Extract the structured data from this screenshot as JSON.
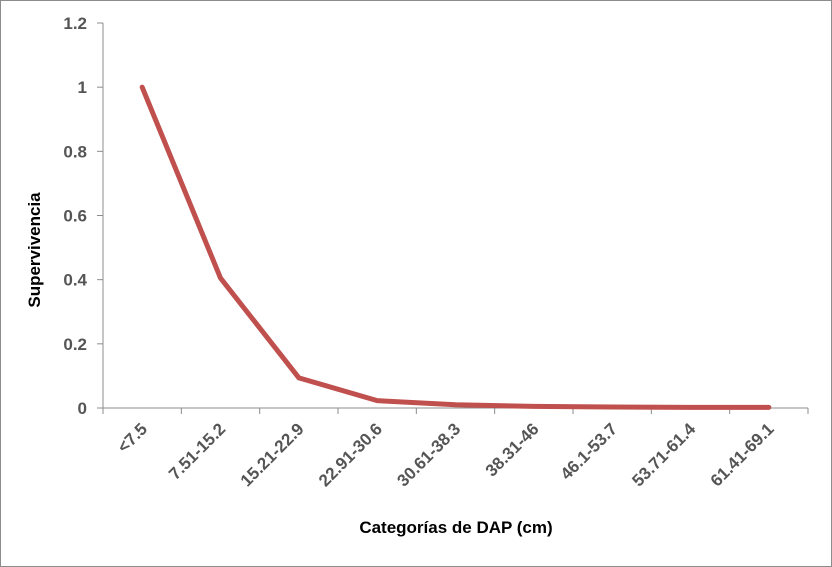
{
  "chart_data": {
    "type": "line",
    "title": "",
    "xlabel": "Categorías de DAP (cm)",
    "ylabel": "Supervivencia",
    "categories": [
      "<7.5",
      "7.51-15.2",
      "15.21-22.9",
      "22.91-30.6",
      "30.61-38.3",
      "38.31-46",
      "46.1-53.7",
      "53.71-61.4",
      "61.41-69.1"
    ],
    "series": [
      {
        "values": [
          1.0,
          0.405,
          0.094,
          0.023,
          0.01,
          0.005,
          0.003,
          0.002,
          0.002
        ],
        "color": "#c0504d"
      }
    ],
    "ylim": [
      0,
      1.2
    ],
    "yticks": [
      "0",
      "0.2",
      "0.4",
      "0.6",
      "0.8",
      "1",
      "1.2"
    ],
    "grid": false,
    "legend": "none"
  }
}
